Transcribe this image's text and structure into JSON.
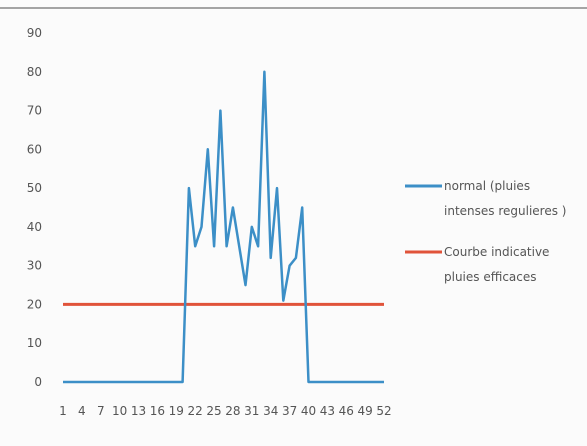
{
  "chart_data": {
    "type": "line",
    "x_start": 1,
    "x_end": 52,
    "xtick_labels": [
      "1",
      "4",
      "7",
      "10",
      "13",
      "16",
      "19",
      "22",
      "25",
      "28",
      "31",
      "34",
      "37",
      "40",
      "43",
      "46",
      "49",
      "52"
    ],
    "ylim": [
      0,
      90
    ],
    "yticks": [
      0,
      10,
      20,
      30,
      40,
      50,
      60,
      70,
      80,
      90
    ],
    "grid": false,
    "legend_position": "right",
    "series": [
      {
        "name": "normal (pluies intenses regulieres )",
        "color": "#3c8fc7",
        "x": [
          1,
          2,
          3,
          4,
          5,
          6,
          7,
          8,
          9,
          10,
          11,
          12,
          13,
          14,
          15,
          16,
          17,
          18,
          19,
          20,
          21,
          22,
          23,
          24,
          25,
          26,
          27,
          28,
          29,
          30,
          31,
          32,
          33,
          34,
          35,
          36,
          37,
          38,
          39,
          40,
          41,
          42,
          43,
          44,
          45,
          46,
          47,
          48,
          49,
          50,
          51,
          52
        ],
        "y": [
          0,
          0,
          0,
          0,
          0,
          0,
          0,
          0,
          0,
          0,
          0,
          0,
          0,
          0,
          0,
          0,
          0,
          0,
          0,
          0,
          50,
          35,
          40,
          60,
          35,
          70,
          35,
          45,
          35,
          25,
          40,
          35,
          80,
          32,
          50,
          21,
          30,
          32,
          45,
          0,
          0,
          0,
          0,
          0,
          0,
          0,
          0,
          0,
          0,
          0,
          0,
          0
        ]
      },
      {
        "name": "Courbe indicative pluies efficaces",
        "color": "#e0533a",
        "x": [
          1,
          52
        ],
        "y": [
          20,
          20
        ]
      }
    ],
    "legend_lines": [
      [
        "normal (pluies",
        "intenses regulieres )"
      ],
      [
        "Courbe indicative",
        "pluies efficaces"
      ]
    ]
  }
}
